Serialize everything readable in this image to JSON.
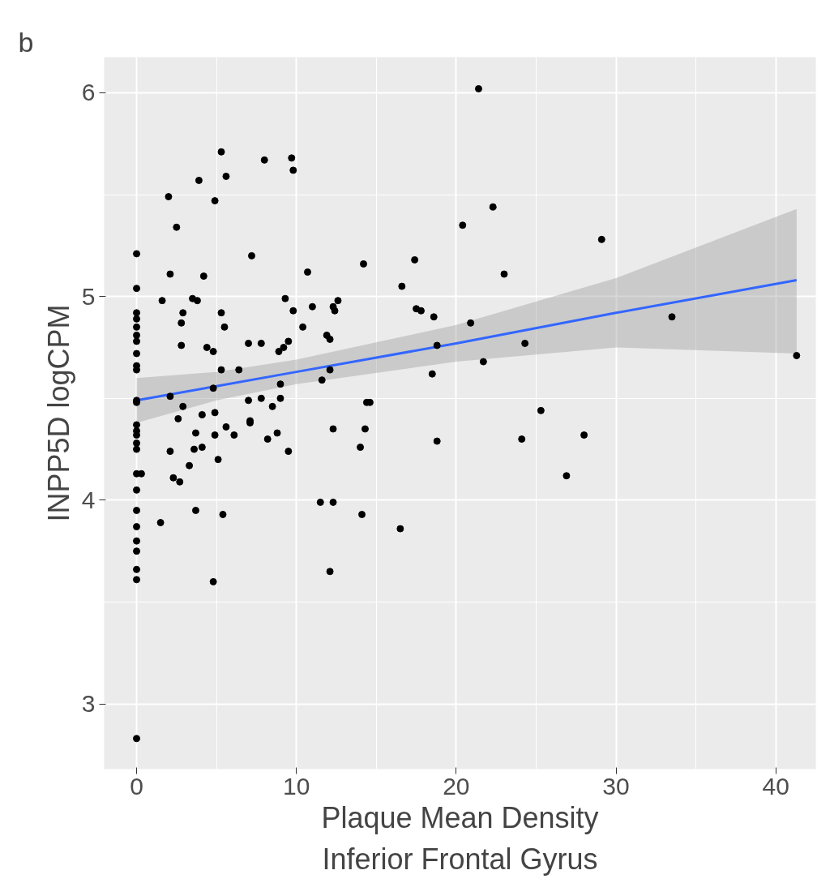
{
  "chart_data": {
    "type": "scatter",
    "xlabel": "Plaque Mean Density",
    "ylabel": "INPP5D logCPM",
    "annotations": [
      "b",
      "Inferior Frontal Gyrus"
    ],
    "xlim": [
      -2.03,
      42.5
    ],
    "ylim": [
      2.68,
      6.175
    ],
    "xticks": [
      0,
      10,
      20,
      30,
      40
    ],
    "yticks": [
      3,
      4,
      5,
      6
    ],
    "grid": true,
    "series": [
      {
        "marker": "circle",
        "color": "#000000",
        "x": [
          0,
          0,
          0,
          0,
          0,
          0,
          0,
          0,
          0,
          0,
          0,
          0,
          0,
          0,
          0,
          0,
          0,
          0,
          0,
          0,
          0,
          0,
          0,
          0,
          0,
          0,
          0.3,
          1.5,
          1.6,
          2.0,
          2.1,
          2.1,
          2.1,
          2.3,
          2.5,
          2.6,
          2.7,
          2.8,
          2.8,
          2.9,
          2.9,
          3.3,
          3.5,
          3.6,
          3.7,
          3.8,
          3.7,
          3.9,
          4.1,
          4.1,
          4.2,
          4.4,
          4.8,
          4.8,
          4.8,
          4.9,
          4.9,
          4.9,
          5.1,
          5.3,
          5.3,
          5.3,
          5.4,
          5.5,
          5.6,
          5.6,
          6.1,
          6.4,
          7.0,
          7.0,
          7.1,
          7.1,
          7.2,
          7.8,
          7.8,
          8.0,
          8.2,
          8.5,
          8.8,
          8.9,
          9.0,
          9.0,
          9.2,
          9.3,
          9.5,
          9.5,
          9.7,
          9.8,
          9.8,
          10.4,
          10.7,
          11.0,
          11.5,
          11.6,
          11.9,
          12.1,
          12.1,
          12.1,
          12.3,
          12.3,
          12.3,
          12.4,
          12.6,
          14.0,
          14.1,
          14.2,
          14.3,
          14.4,
          14.6,
          16.5,
          16.6,
          17.4,
          17.5,
          17.8,
          18.5,
          18.6,
          18.8,
          18.8,
          20.4,
          20.9,
          21.4,
          21.7,
          22.3,
          23.0,
          24.1,
          24.3,
          25.3,
          26.9,
          28.0,
          29.1,
          33.5,
          41.3
        ],
        "values": [
          5.21,
          5.04,
          4.92,
          4.89,
          4.85,
          4.81,
          4.78,
          4.72,
          4.66,
          4.64,
          4.49,
          4.48,
          4.37,
          4.34,
          4.32,
          4.28,
          4.25,
          4.13,
          4.05,
          3.95,
          3.87,
          3.8,
          3.75,
          3.66,
          3.61,
          2.83,
          4.13,
          3.89,
          4.98,
          5.49,
          5.11,
          4.51,
          4.24,
          4.11,
          5.34,
          4.4,
          4.09,
          4.87,
          4.76,
          4.92,
          4.46,
          4.17,
          4.99,
          4.25,
          4.33,
          4.98,
          3.95,
          5.57,
          4.42,
          4.26,
          5.1,
          4.75,
          3.6,
          4.73,
          4.55,
          4.43,
          4.32,
          5.47,
          4.2,
          4.64,
          5.71,
          4.92,
          3.93,
          4.85,
          5.59,
          4.36,
          4.32,
          4.64,
          4.77,
          4.49,
          4.38,
          4.39,
          5.2,
          4.5,
          4.77,
          5.67,
          4.3,
          4.46,
          4.33,
          4.73,
          4.57,
          4.5,
          4.75,
          4.99,
          4.78,
          4.24,
          5.68,
          5.62,
          4.93,
          4.85,
          5.12,
          4.95,
          3.99,
          4.59,
          4.81,
          4.79,
          3.65,
          4.64,
          3.99,
          4.35,
          4.95,
          4.93,
          4.98,
          4.26,
          3.93,
          5.16,
          4.35,
          4.48,
          4.48,
          3.86,
          5.05,
          5.18,
          4.94,
          4.93,
          4.62,
          4.9,
          4.76,
          4.29,
          5.35,
          4.87,
          6.02,
          4.68,
          5.44,
          5.11,
          4.3,
          4.77,
          4.44,
          4.12,
          4.32,
          5.28,
          4.9,
          4.71
        ]
      },
      {
        "type": "line",
        "color": "#3366ff",
        "x": [
          0,
          5,
          10,
          20,
          30,
          41.3
        ],
        "values": [
          4.49,
          4.56,
          4.63,
          4.77,
          4.92,
          5.08
        ],
        "lower": [
          4.38,
          4.49,
          4.57,
          4.68,
          4.75,
          4.72
        ],
        "upper": [
          4.6,
          4.63,
          4.69,
          4.86,
          5.09,
          5.43
        ]
      }
    ]
  }
}
